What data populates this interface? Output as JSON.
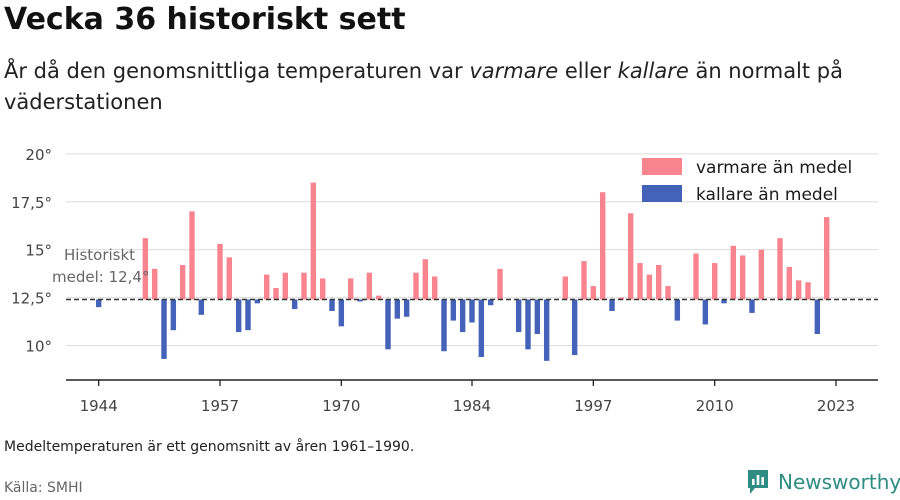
{
  "header": {
    "title": "Vecka 36 historiskt sett",
    "subtitle_pre": "År då den genomsnittliga temperaturen var ",
    "subtitle_warm": "varmare",
    "subtitle_mid": " eller ",
    "subtitle_cold": "kallare",
    "subtitle_post": " än normalt på väderstationen"
  },
  "footer": {
    "note": "Medeltemperaturen är ett genomsnitt av åren 1961–1990.",
    "source": "Källa: SMHI",
    "brand": "Newsworthy"
  },
  "colors": {
    "warm": "#f7848f",
    "cold": "#4462b8",
    "brand": "#2e8c82"
  },
  "chart_data": {
    "type": "bar",
    "baseline": 12.4,
    "ylim": [
      8.2,
      20.2
    ],
    "yticks": [
      10,
      12.5,
      15,
      17.5,
      20
    ],
    "ytick_labels": [
      "10°",
      "12,5°",
      "15°",
      "17,5°",
      "20°"
    ],
    "xticks": [
      1944,
      1957,
      1970,
      1984,
      1997,
      2010,
      2023
    ],
    "xlim": [
      1940.5,
      2027.5
    ],
    "legend": {
      "position": "top-right",
      "warm_label": "varmare än medel",
      "cold_label": "kallare än medel"
    },
    "annotation": {
      "line1": "Historiskt",
      "line2": "medel: 12,4°"
    },
    "years": [
      1944,
      1945,
      1946,
      1947,
      1948,
      1949,
      1950,
      1951,
      1952,
      1953,
      1954,
      1955,
      1956,
      1957,
      1958,
      1959,
      1960,
      1961,
      1962,
      1963,
      1964,
      1965,
      1966,
      1967,
      1968,
      1969,
      1970,
      1971,
      1972,
      1973,
      1974,
      1975,
      1976,
      1977,
      1978,
      1979,
      1980,
      1981,
      1982,
      1983,
      1984,
      1985,
      1986,
      1987,
      1988,
      1989,
      1990,
      1991,
      1992,
      1993,
      1994,
      1995,
      1996,
      1997,
      1998,
      1999,
      2000,
      2001,
      2002,
      2003,
      2004,
      2005,
      2006,
      2007,
      2008,
      2009,
      2010,
      2011,
      2012,
      2013,
      2014,
      2015,
      2016,
      2017,
      2018,
      2019,
      2020,
      2021,
      2022,
      2023
    ],
    "values": [
      12.0,
      null,
      null,
      null,
      null,
      15.6,
      14.0,
      9.3,
      10.8,
      14.2,
      17.0,
      11.6,
      null,
      15.3,
      14.6,
      10.7,
      10.8,
      12.2,
      13.7,
      13.0,
      13.8,
      11.9,
      13.8,
      18.5,
      13.5,
      11.8,
      11.0,
      13.5,
      12.3,
      13.8,
      12.6,
      9.8,
      11.4,
      11.5,
      13.8,
      14.5,
      13.6,
      9.7,
      11.3,
      10.7,
      11.2,
      9.4,
      12.1,
      14.0,
      null,
      10.7,
      9.8,
      10.6,
      9.2,
      null,
      13.6,
      9.5,
      14.4,
      13.1,
      18.0,
      11.8,
      12.5,
      16.9,
      14.3,
      13.7,
      14.2,
      13.1,
      11.3,
      null,
      14.8,
      11.1,
      14.3,
      12.2,
      15.2,
      14.7,
      11.7,
      15.0,
      null,
      15.6,
      14.1,
      13.4,
      13.3,
      10.6,
      16.7,
      null
    ]
  }
}
